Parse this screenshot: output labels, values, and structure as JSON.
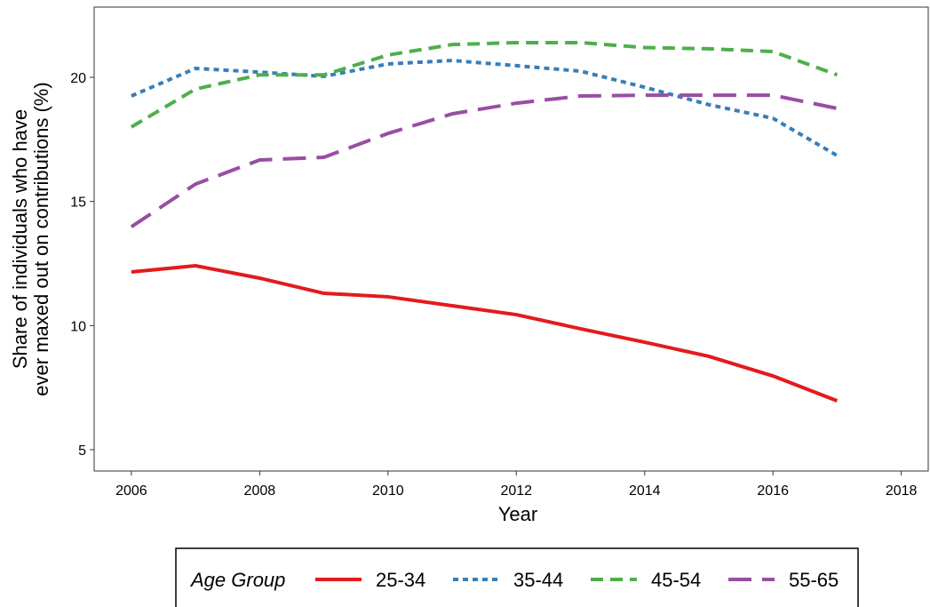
{
  "chart_data": {
    "type": "line",
    "x_label": "Year",
    "y_label": [
      "Share of individuals who have",
      "ever maxed out on contributions (%)"
    ],
    "x": [
      2006,
      2007,
      2008,
      2009,
      2010,
      2011,
      2012,
      2013,
      2014,
      2015,
      2016,
      2017
    ],
    "series": [
      {
        "name": "25-34",
        "color": "#e41a1c",
        "dash": "solid",
        "values": [
          12.16,
          12.41,
          11.91,
          11.3,
          11.16,
          10.8,
          10.44,
          9.87,
          9.33,
          8.76,
          7.97,
          6.97
        ]
      },
      {
        "name": "35-44",
        "color": "#377eb8",
        "dash": "dotted",
        "values": [
          19.25,
          20.36,
          20.21,
          20.04,
          20.54,
          20.68,
          20.47,
          20.25,
          19.6,
          18.9,
          18.35,
          16.85
        ]
      },
      {
        "name": "45-54",
        "color": "#4daf4a",
        "dash": "dashed",
        "values": [
          18.0,
          19.53,
          20.1,
          20.1,
          20.9,
          21.32,
          21.4,
          21.4,
          21.2,
          21.15,
          21.04,
          20.1
        ]
      },
      {
        "name": "55-65",
        "color": "#984ea3",
        "dash": "longdash",
        "values": [
          13.98,
          15.7,
          16.67,
          16.78,
          17.74,
          18.53,
          18.96,
          19.25,
          19.28,
          19.28,
          19.28,
          18.75
        ]
      }
    ],
    "legend_title": "Age Group",
    "legend_position": "bottom",
    "xlim": [
      2005.42,
      2018.42
    ],
    "xticks": [
      2006,
      2008,
      2010,
      2012,
      2014,
      2016,
      2018
    ],
    "ylim": [
      4.14,
      22.83
    ],
    "yticks": [
      5,
      10,
      15,
      20
    ],
    "grid": false
  }
}
